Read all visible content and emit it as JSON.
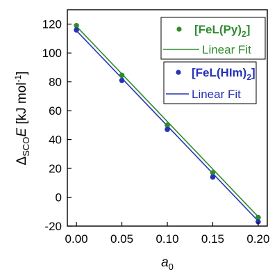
{
  "chart_data": {
    "type": "scatter",
    "title": "",
    "xlabel_italic": "a",
    "xlabel_sub": "0",
    "ylabel_parts": {
      "prefix": "Δ",
      "sub": "SCO",
      "italic": "E",
      "unit": " [kJ mol",
      "sup": "-1",
      "close": "]"
    },
    "xlim": [
      -0.01,
      0.21
    ],
    "ylim": [
      -20,
      130
    ],
    "x_ticks": [
      0.0,
      0.05,
      0.1,
      0.15,
      0.2
    ],
    "x_tick_labels": [
      "0.00",
      "0.05",
      "0.10",
      "0.15",
      "0.20"
    ],
    "y_ticks": [
      -20,
      0,
      20,
      40,
      60,
      80,
      100,
      120
    ],
    "y_tick_labels": [
      "-20",
      "0",
      "20",
      "40",
      "60",
      "80",
      "100",
      "120"
    ],
    "grid": false,
    "series": [
      {
        "name": "[FeL(Py)2]",
        "legend_main": "[FeL(Py)",
        "legend_sub": "2",
        "legend_close": "]",
        "fit_label": "Linear Fit",
        "color": "#2e8b2e",
        "x": [
          0.0,
          0.05,
          0.1,
          0.15,
          0.2
        ],
        "y": [
          119,
          84.5,
          50,
          17,
          -14
        ],
        "fit": {
          "x": [
            0.0,
            0.2
          ],
          "y": [
            118.5,
            -13.5
          ]
        }
      },
      {
        "name": "[FeL(HIm)2]",
        "legend_main": "[FeL(HIm)",
        "legend_sub": "2",
        "legend_close": "]",
        "fit_label": "Linear Fit",
        "color": "#2633b5",
        "x": [
          0.0,
          0.05,
          0.1,
          0.15,
          0.2
        ],
        "y": [
          116,
          81,
          47,
          14,
          -17
        ],
        "fit": {
          "x": [
            0.0,
            0.2
          ],
          "y": [
            115.5,
            -16.5
          ]
        }
      }
    ]
  }
}
